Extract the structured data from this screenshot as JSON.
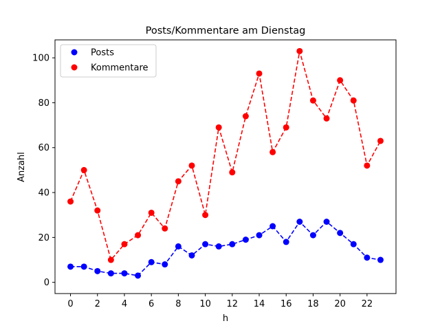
{
  "chart_data": {
    "type": "line",
    "title": "Posts/Kommentare am Dienstag",
    "xlabel": "h",
    "ylabel": "Anzahl",
    "x": [
      0,
      1,
      2,
      3,
      4,
      5,
      6,
      7,
      8,
      9,
      10,
      11,
      12,
      13,
      14,
      15,
      16,
      17,
      18,
      19,
      20,
      21,
      22,
      23
    ],
    "xticks": [
      0,
      2,
      4,
      6,
      8,
      10,
      12,
      14,
      16,
      18,
      20,
      22
    ],
    "yticks": [
      0,
      20,
      40,
      60,
      80,
      100
    ],
    "xlim": [
      -1.15,
      24.15
    ],
    "ylim": [
      -5,
      108
    ],
    "grid": false,
    "legend_position": "top-left",
    "series": [
      {
        "name": "Posts",
        "color": "#0000ff",
        "linestyle": "dashed",
        "marker": "circle",
        "values": [
          7,
          7,
          5,
          4,
          4,
          3,
          9,
          8,
          16,
          12,
          17,
          16,
          17,
          19,
          21,
          25,
          18,
          27,
          21,
          27,
          22,
          17,
          11,
          10
        ]
      },
      {
        "name": "Kommentare",
        "color": "#ff0000",
        "linestyle": "dashed",
        "marker": "circle",
        "values": [
          36,
          50,
          32,
          10,
          17,
          21,
          31,
          24,
          45,
          52,
          30,
          69,
          49,
          74,
          93,
          58,
          69,
          103,
          81,
          73,
          90,
          81,
          52,
          63
        ]
      }
    ]
  }
}
